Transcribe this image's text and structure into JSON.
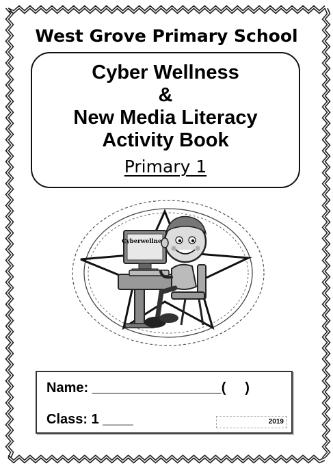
{
  "school_name": "West Grove Primary School",
  "title": {
    "line1": "Cyber Wellness",
    "line2": "&",
    "line3": "New Media Literacy",
    "line4": "Activity Book"
  },
  "level": "Primary 1",
  "emblem": {
    "monitor_text": "Cyberwellness"
  },
  "form": {
    "name_line": "Name: _________________(     )",
    "class_line": "Class: 1 ____",
    "year": "2019"
  }
}
